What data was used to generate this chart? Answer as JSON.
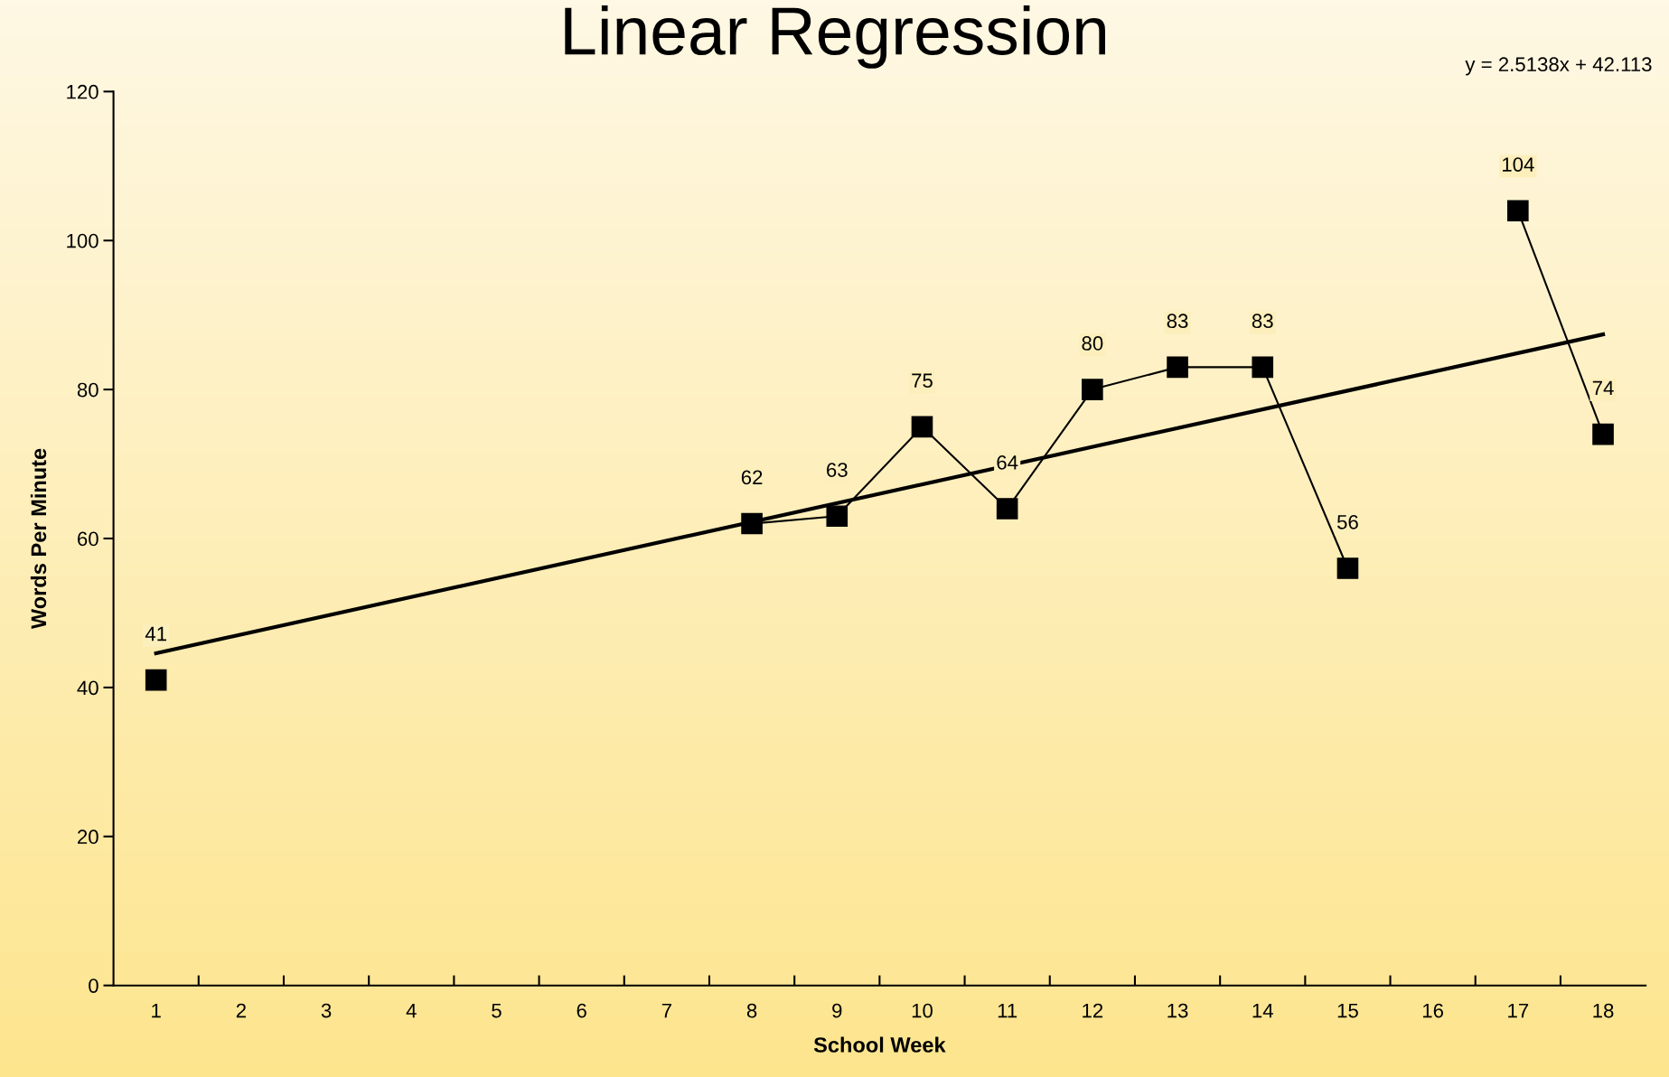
{
  "chart_data": {
    "type": "line",
    "title": "Linear Regression",
    "xlabel": "School Week",
    "ylabel": "Words Per Minute",
    "annotations": [
      "y = 2.5138x + 42.113"
    ],
    "categories": [
      "1",
      "2",
      "3",
      "4",
      "5",
      "6",
      "7",
      "8",
      "9",
      "10",
      "11",
      "12",
      "13",
      "14",
      "15",
      "16",
      "17",
      "18"
    ],
    "ylim": [
      0,
      120
    ],
    "yticks": [
      0,
      20,
      40,
      60,
      80,
      100,
      120
    ],
    "grid": false,
    "legend": false,
    "series": [
      {
        "color": "#000000",
        "marker": "square",
        "line_style": "solid",
        "data_labels": true,
        "values": [
          41,
          null,
          null,
          null,
          null,
          null,
          null,
          62,
          63,
          75,
          64,
          80,
          83,
          83,
          56,
          null,
          104,
          74
        ]
      },
      {
        "type": "line",
        "color": "#000000",
        "marker": "none",
        "line_style": "solid",
        "values": [
          44.6,
          null,
          null,
          null,
          null,
          null,
          null,
          null,
          null,
          null,
          null,
          null,
          null,
          null,
          null,
          null,
          null,
          87.4
        ]
      }
    ]
  }
}
